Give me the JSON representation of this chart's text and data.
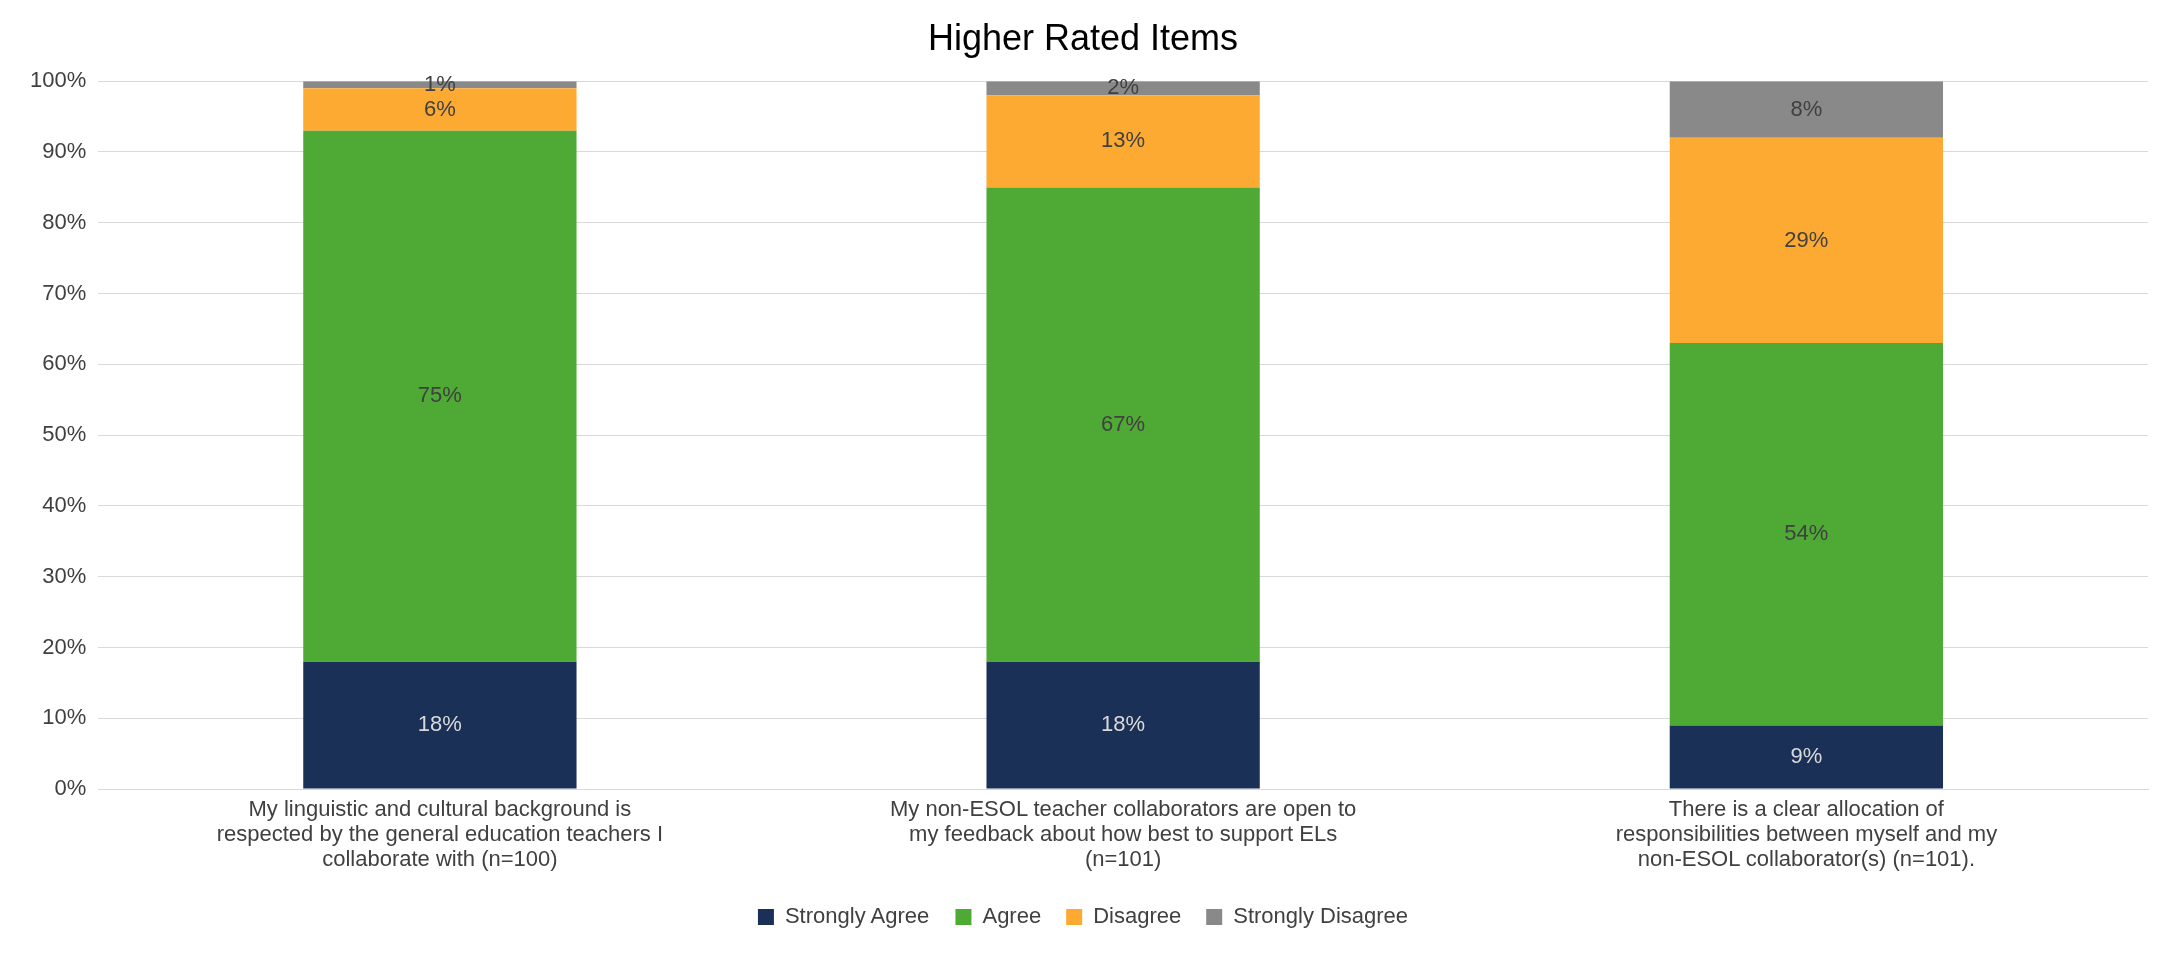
{
  "chart_data": {
    "type": "bar",
    "title": "Higher Rated Items",
    "stacked": true,
    "categories": [
      "My linguistic and cultural background is respected by the general education teachers I collaborate with (n=100)",
      "My non-ESOL teacher collaborators are open to my feedback about how best to support ELs (n=101)",
      "There is a clear allocation of responsibilities between myself and my non-ESOL collaborator(s) (n=101)."
    ],
    "series": [
      {
        "name": "Strongly Agree",
        "color": "#1b3057",
        "values": [
          18,
          18,
          9
        ],
        "value_labels": [
          "18%",
          "18%",
          "9%"
        ]
      },
      {
        "name": "Agree",
        "color": "#4fa935",
        "values": [
          75,
          67,
          54
        ],
        "value_labels": [
          "75%",
          "67%",
          "54%"
        ]
      },
      {
        "name": "Disagree",
        "color": "#fdaa33",
        "values": [
          6,
          13,
          29
        ],
        "value_labels": [
          "6%",
          "13%",
          "29%"
        ]
      },
      {
        "name": "Strongly Disagree",
        "color": "#898989",
        "values": [
          1,
          2,
          8
        ],
        "value_labels": [
          "1%",
          "2%",
          "8%"
        ]
      }
    ],
    "ylim": [
      0,
      100
    ],
    "yticks": [
      {
        "value": 0,
        "label": "0%"
      },
      {
        "value": 10,
        "label": "10%"
      },
      {
        "value": 20,
        "label": "20%"
      },
      {
        "value": 30,
        "label": "30%"
      },
      {
        "value": 40,
        "label": "40%"
      },
      {
        "value": 50,
        "label": "50%"
      },
      {
        "value": 60,
        "label": "60%"
      },
      {
        "value": 70,
        "label": "70%"
      },
      {
        "value": 80,
        "label": "80%"
      },
      {
        "value": 90,
        "label": "90%"
      },
      {
        "value": 100,
        "label": "100%"
      }
    ],
    "grid": "y",
    "legend": "bottom"
  }
}
